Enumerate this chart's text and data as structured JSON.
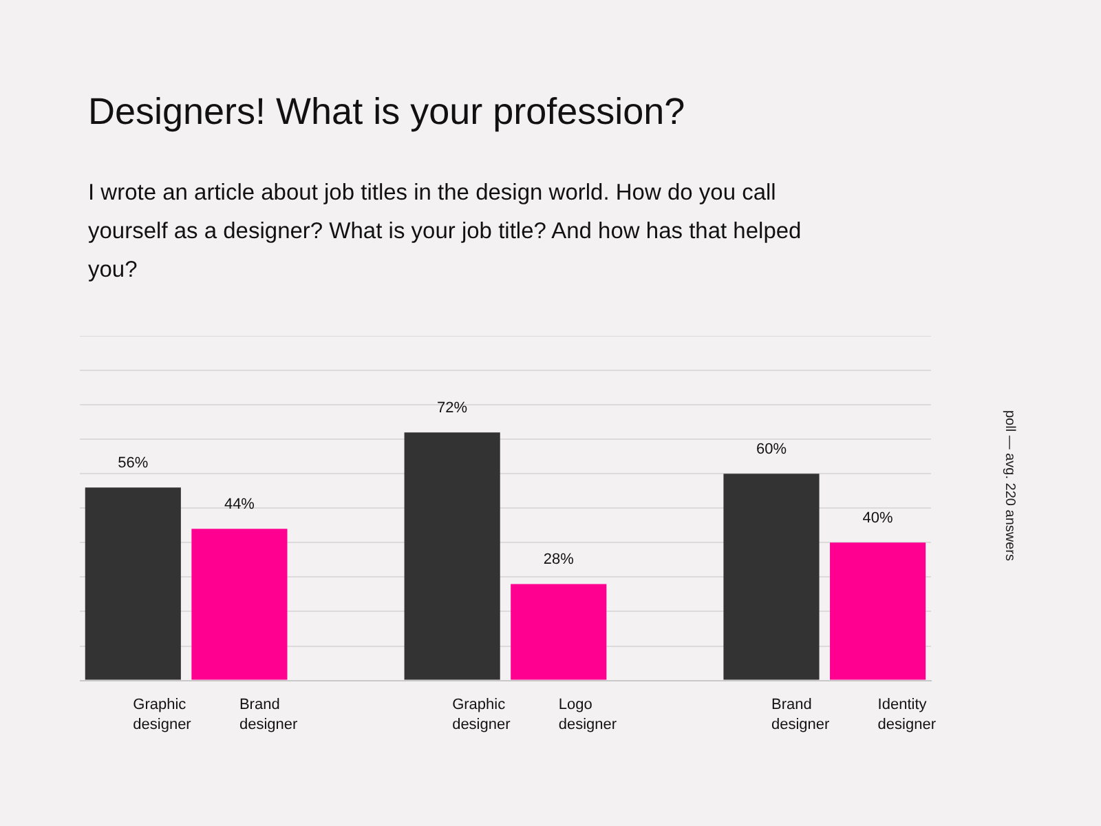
{
  "chart_data": {
    "type": "bar",
    "title": "Designers! What is your profession?",
    "subtitle": "I wrote an article about job titles in the design world. How do you call yourself as a designer? What is your job title? And how has that helped you?",
    "categories": [
      "Graphic designer",
      "Brand designer",
      null,
      "Graphic designer",
      "Logo designer",
      null,
      "Brand designer",
      "Identity designer"
    ],
    "values": [
      56,
      44,
      null,
      72,
      28,
      null,
      60,
      40
    ],
    "colors": [
      "#333333",
      "#ff0090",
      null,
      "#333333",
      "#ff0090",
      null,
      "#333333",
      "#ff0090"
    ],
    "value_labels": [
      "56%",
      "44%",
      null,
      "72%",
      "28%",
      null,
      "60%",
      "40%"
    ],
    "ylim": [
      0,
      100
    ],
    "yticks": [
      {
        "value": 0,
        "label": null
      },
      {
        "value": 10,
        "label": null
      },
      {
        "value": 20,
        "label": null
      },
      {
        "value": 30,
        "label": null
      },
      {
        "value": 40,
        "label": null
      },
      {
        "value": 50,
        "label": null
      },
      {
        "value": 60,
        "label": null
      },
      {
        "value": 70,
        "label": null
      },
      {
        "value": 80,
        "label": null
      },
      {
        "value": 90,
        "label": null
      },
      {
        "value": 100,
        "label": null
      }
    ],
    "grid": "y",
    "tick_labels": "x",
    "legend": false,
    "annotations": [
      "poll — avg. 220 answers"
    ]
  }
}
